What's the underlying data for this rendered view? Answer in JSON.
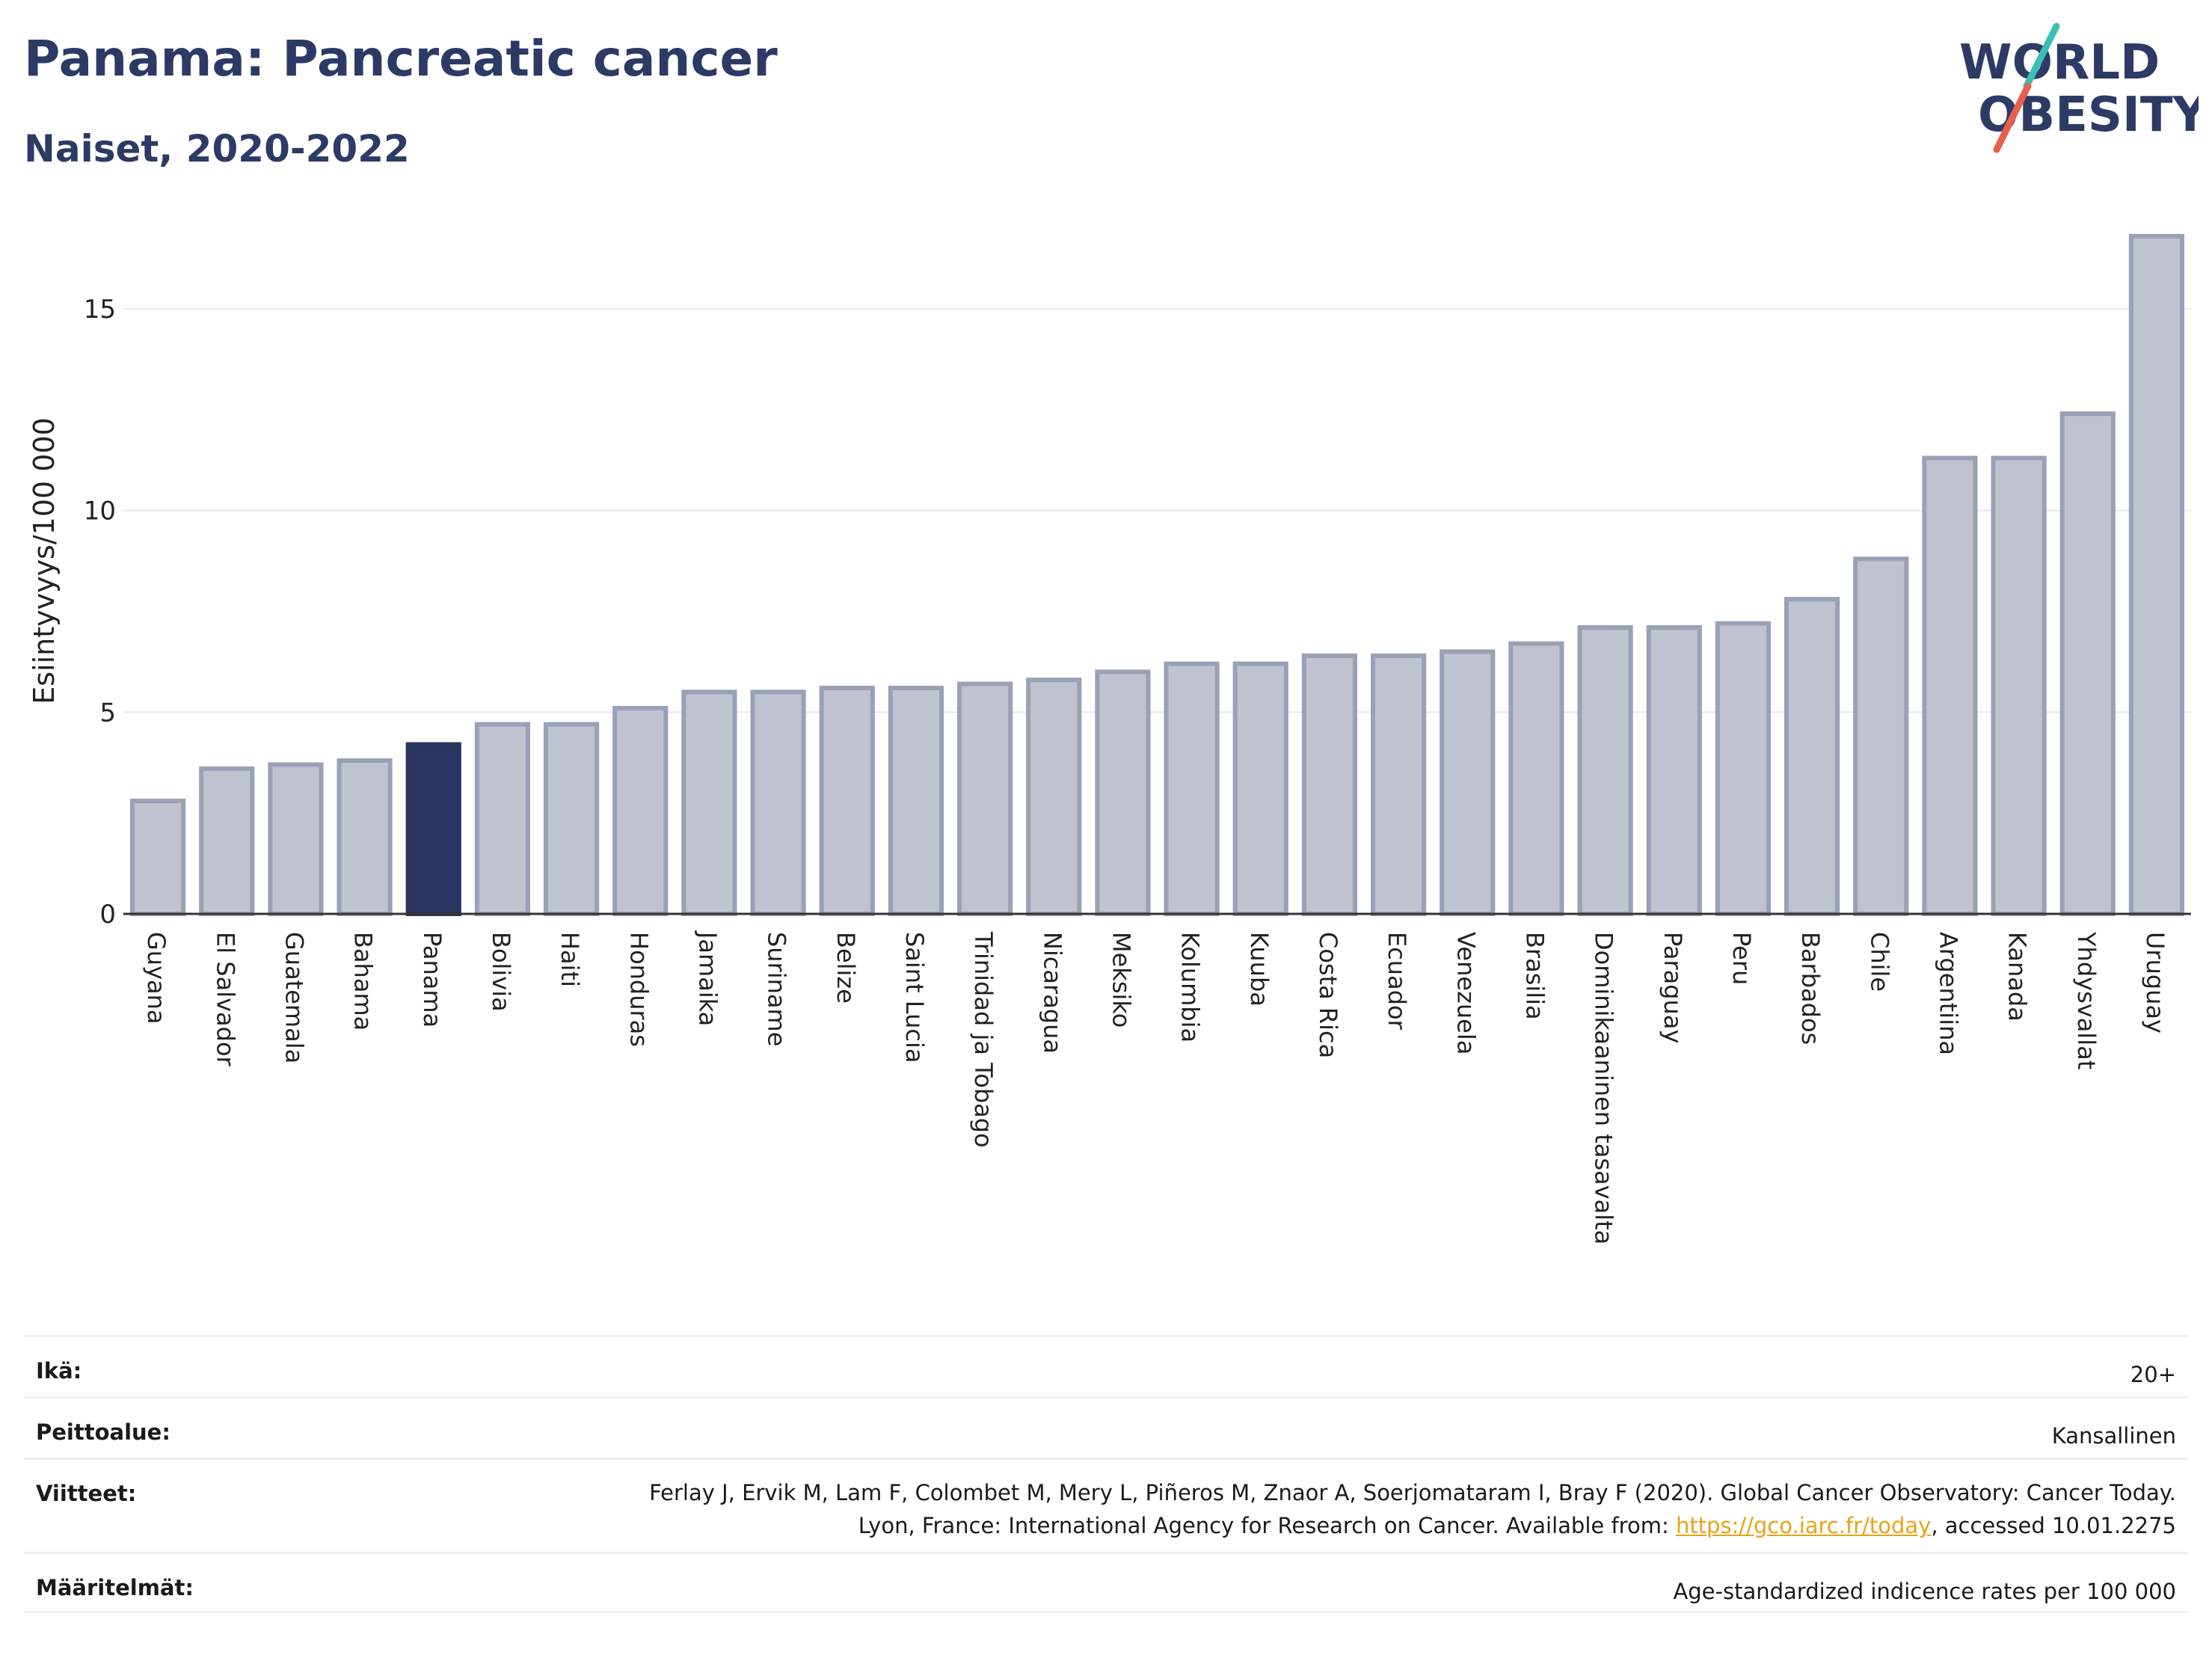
{
  "header": {
    "title": "Panama: Pancreatic cancer",
    "subtitle": "Naiset, 2020-2022"
  },
  "logo": {
    "line1": "WORLD",
    "line2": "OBESITY",
    "colors": {
      "text": "#2d3a66",
      "slash_teal": "#3bbfb5",
      "slash_red": "#e8604c"
    }
  },
  "colors": {
    "bar_default": "#bfc3d0",
    "bar_default_stroke": "#9aa0b6",
    "bar_highlight": "#2b3562",
    "grid": "#e6e8ee",
    "axis": "#333333"
  },
  "chart_data": {
    "type": "bar",
    "ylabel": "Esiintyvyys/100 000",
    "ylim": [
      0,
      17
    ],
    "yticks": [
      0,
      5,
      10,
      15
    ],
    "highlight": "Panama",
    "categories": [
      "Guyana",
      "El Salvador",
      "Guatemala",
      "Bahama",
      "Panama",
      "Bolivia",
      "Haiti",
      "Honduras",
      "Jamaika",
      "Suriname",
      "Belize",
      "Saint Lucia",
      "Trinidad ja Tobago",
      "Nicaragua",
      "Meksiko",
      "Kolumbia",
      "Kuuba",
      "Costa Rica",
      "Ecuador",
      "Venezuela",
      "Brasilia",
      "Dominikaaninen tasavalta",
      "Paraguay",
      "Peru",
      "Barbados",
      "Chile",
      "Argentiina",
      "Kanada",
      "Yhdysvallat",
      "Uruguay"
    ],
    "values": [
      2.8,
      3.6,
      3.7,
      3.8,
      4.2,
      4.7,
      4.7,
      5.1,
      5.5,
      5.5,
      5.6,
      5.6,
      5.7,
      5.8,
      6.0,
      6.2,
      6.2,
      6.4,
      6.4,
      6.5,
      6.7,
      7.1,
      7.1,
      7.2,
      7.8,
      8.8,
      11.3,
      11.3,
      12.4,
      16.8
    ]
  },
  "info": {
    "age_label": "Ikä:",
    "age_value": "20+",
    "coverage_label": "Peittoalue:",
    "coverage_value": "Kansallinen",
    "refs_label": "Viitteet:",
    "refs_text_1": "Ferlay J, Ervik M, Lam F, Colombet M, Mery L, Piñeros M, Znaor A, Soerjomataram I, Bray F (2020). Global Cancer Observatory: Cancer Today. Lyon, France: International Agency for Research on Cancer. Available from: ",
    "refs_link": "https://gco.iarc.fr/today",
    "refs_text_2": ", accessed 10.01.2275",
    "defs_label": "Määritelmät:",
    "defs_value": "Age-standardized indicence rates per 100 000"
  }
}
